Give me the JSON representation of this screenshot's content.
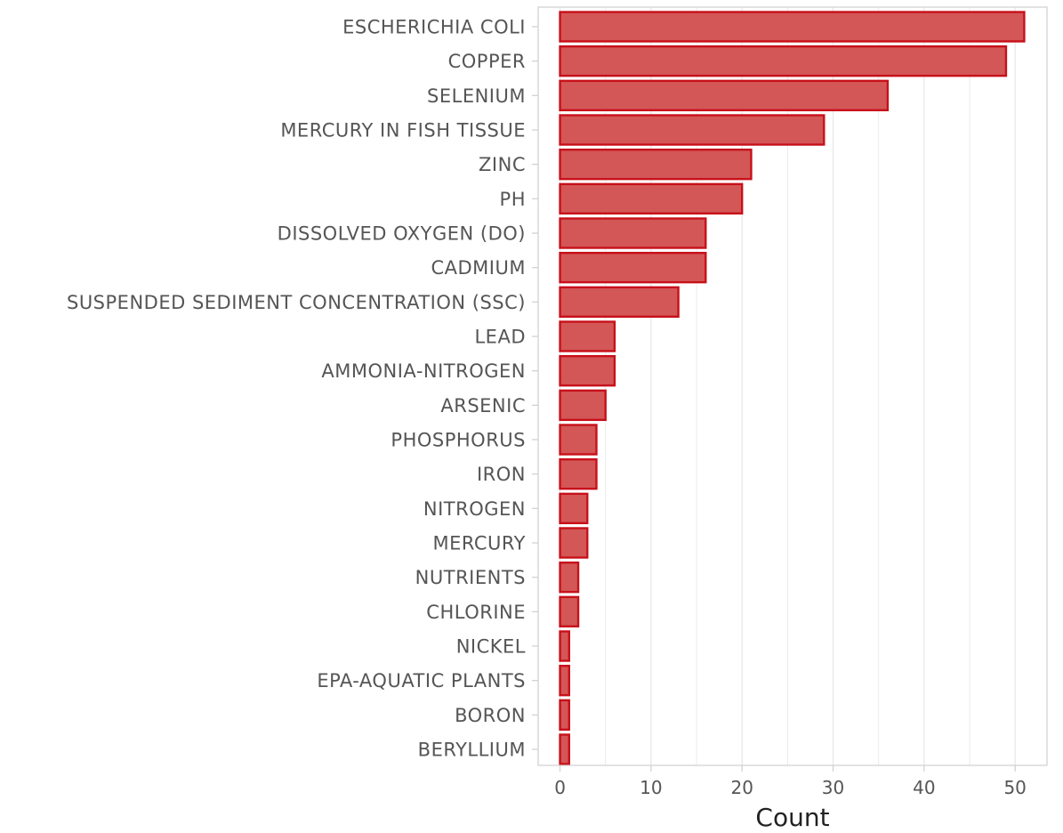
{
  "chart_data": {
    "type": "bar",
    "orientation": "horizontal",
    "title": "",
    "xlabel": "Count",
    "ylabel": "",
    "xlim": [
      -2.4,
      53.5
    ],
    "xticks": [
      0,
      10,
      20,
      30,
      40,
      50
    ],
    "grid": true,
    "legend": "none",
    "colors": {
      "bar_fill": "#d35757",
      "bar_stroke": "#c8101a",
      "grid": "#e6e6e6",
      "frame": "#cfcfcf",
      "text": "#555555"
    },
    "categories": [
      "ESCHERICHIA COLI",
      "COPPER",
      "SELENIUM",
      "MERCURY IN FISH TISSUE",
      "ZINC",
      "PH",
      "DISSOLVED OXYGEN (DO)",
      "CADMIUM",
      "SUSPENDED SEDIMENT CONCENTRATION (SSC)",
      "LEAD",
      "AMMONIA-NITROGEN",
      "ARSENIC",
      "PHOSPHORUS",
      "IRON",
      "NITROGEN",
      "MERCURY",
      "NUTRIENTS",
      "CHLORINE",
      "NICKEL",
      "EPA-AQUATIC PLANTS",
      "BORON",
      "BERYLLIUM"
    ],
    "values": [
      51,
      49,
      36,
      29,
      21,
      20,
      16,
      16,
      13,
      6,
      6,
      5,
      4,
      4,
      3,
      3,
      2,
      2,
      1,
      1,
      1,
      1
    ]
  }
}
